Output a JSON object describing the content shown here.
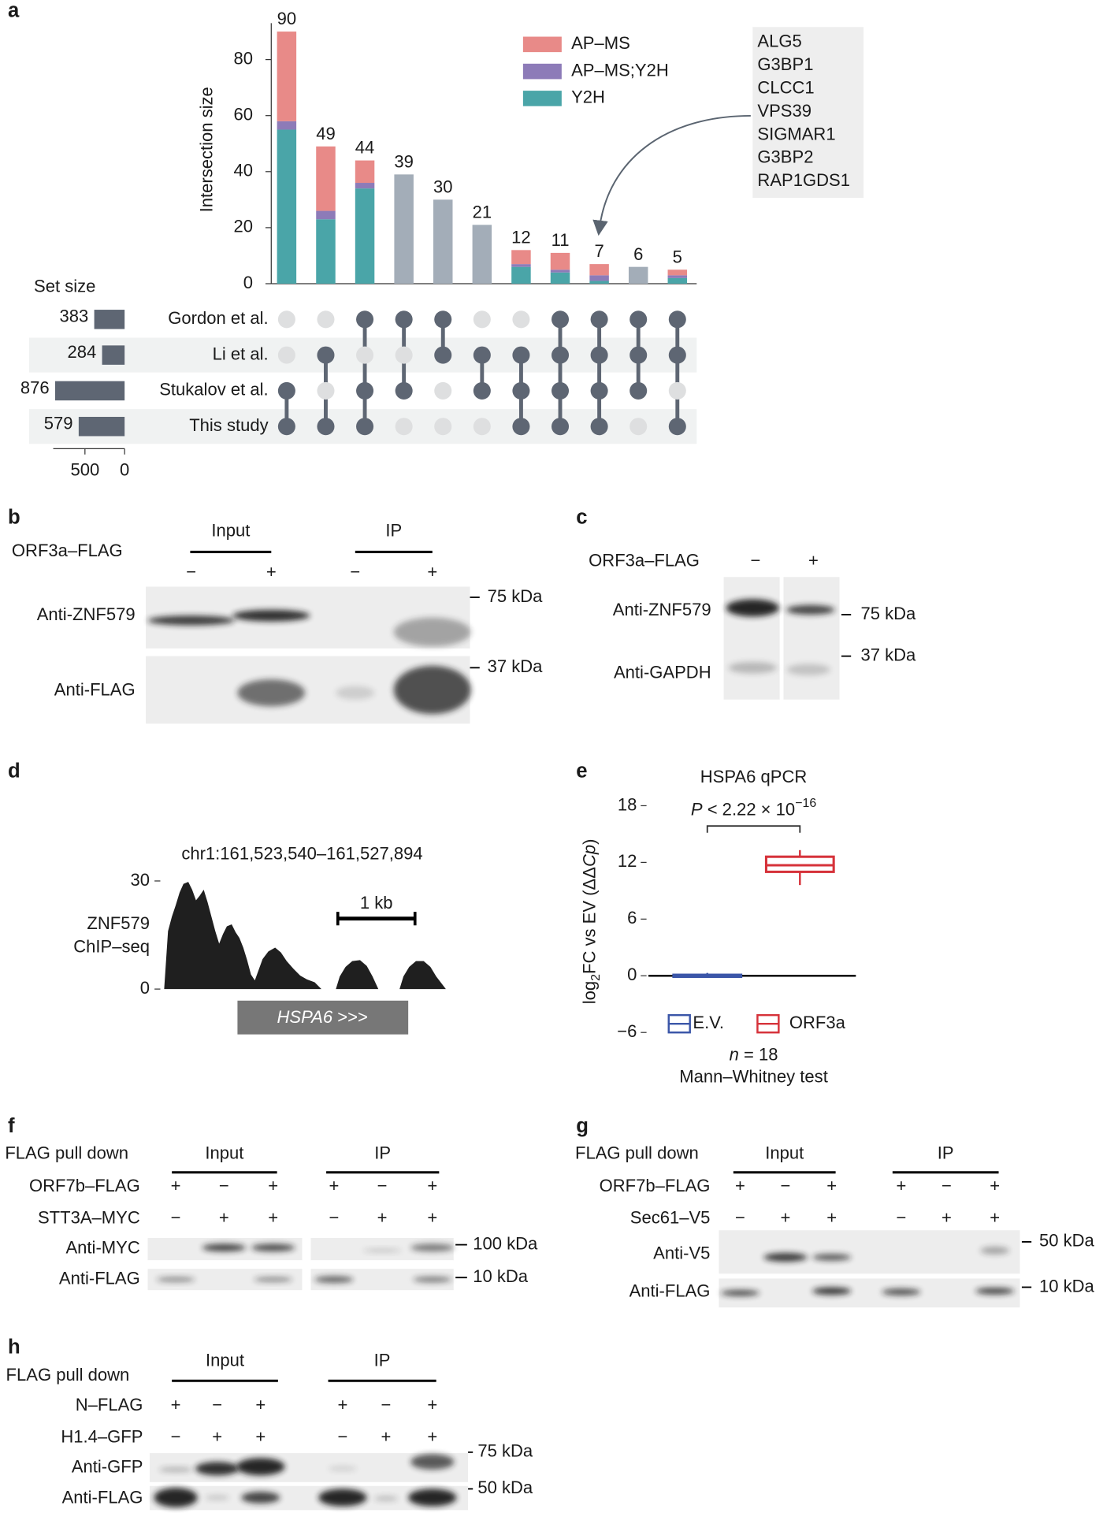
{
  "panel_labels": [
    "a",
    "b",
    "c",
    "d",
    "e",
    "f",
    "g",
    "h"
  ],
  "chart_data": [
    {
      "type": "upset",
      "y_label": "Intersection size",
      "series": [
        {
          "name": "AP–MS",
          "color": "#e88a88",
          "values": [
            32,
            23,
            8,
            null,
            null,
            null,
            5,
            6,
            4,
            null,
            2
          ]
        },
        {
          "name": "AP–MS;Y2H",
          "color": "#8d7bb8",
          "values": [
            3,
            3,
            2,
            null,
            null,
            null,
            1,
            1,
            2,
            null,
            1
          ]
        },
        {
          "name": "Y2H",
          "color": "#4aa5a8",
          "values": [
            55,
            23,
            34,
            null,
            null,
            null,
            6,
            4,
            1,
            null,
            2
          ]
        }
      ],
      "totals": [
        90,
        49,
        44,
        39,
        30,
        21,
        12,
        11,
        7,
        6,
        5
      ],
      "single_color": "#a3adb8",
      "ylim": [
        0,
        93
      ],
      "yticks": [
        0,
        20,
        40,
        60,
        80
      ],
      "sets": [
        "Gordon et al.",
        "Li et al.",
        "Stukalov et al.",
        "This study"
      ],
      "set_sizes": [
        383,
        284,
        876,
        579
      ],
      "set_size_label": "Set size",
      "set_size_xlim": [
        0,
        900
      ],
      "set_size_xticks": [
        500,
        0
      ],
      "membership": [
        [
          0,
          0,
          1,
          1
        ],
        [
          0,
          1,
          0,
          1
        ],
        [
          1,
          0,
          1,
          1
        ],
        [
          1,
          0,
          1,
          0
        ],
        [
          1,
          1,
          0,
          0
        ],
        [
          0,
          1,
          1,
          0
        ],
        [
          0,
          1,
          1,
          1
        ],
        [
          1,
          1,
          1,
          1
        ],
        [
          1,
          1,
          1,
          1
        ],
        [
          1,
          1,
          1,
          0
        ],
        [
          1,
          1,
          0,
          1
        ]
      ],
      "callout": [
        "ALG5",
        "G3BP1",
        "CLCC1",
        "VPS39",
        "SIGMAR1",
        "G3BP2",
        "RAP1GDS1"
      ]
    },
    {
      "type": "box",
      "title": "HSPA6 qPCR",
      "p_label": [
        "P",
        " < 2.22 × 10",
        "−16"
      ],
      "y_label": [
        "log",
        "2",
        "FC vs EV (ΔΔ",
        "Cp",
        ")"
      ],
      "ylim": [
        -6,
        18
      ],
      "yticks": [
        {
          "value": -6,
          "label": "−6"
        },
        0,
        6,
        12,
        18
      ],
      "series": [
        {
          "name": "E.V.",
          "color": "#3b56a8",
          "whislo": -0.2,
          "q1": -0.1,
          "med": 0,
          "q3": 0.1,
          "whishi": 0.3
        },
        {
          "name": "ORF3a",
          "color": "#d6323a",
          "whislo": 9.6,
          "q1": 11,
          "med": 11.7,
          "q3": 12.6,
          "whishi": 13.3
        }
      ],
      "n_label": [
        "n",
        " = 18"
      ],
      "test_label": "Mann–Whitney test"
    }
  ],
  "blots": {
    "b": {
      "groups": [
        "Input",
        "IP"
      ],
      "conditions": [
        {
          "name": "ORF3a–FLAG",
          "signs": [
            "−",
            "+",
            "−",
            "+"
          ]
        }
      ],
      "rows": [
        "Anti-ZNF579",
        "Anti-FLAG"
      ],
      "markers": [
        "75 kDa",
        "37 kDa"
      ]
    },
    "c": {
      "conditions": [
        {
          "name": "ORF3a–FLAG",
          "signs": [
            "−",
            "+"
          ]
        }
      ],
      "rows": [
        "Anti-ZNF579",
        "Anti-GAPDH"
      ],
      "markers": [
        "75 kDa",
        "37 kDa"
      ]
    },
    "f": {
      "title": "FLAG pull down",
      "groups": [
        "Input",
        "IP"
      ],
      "conditions": [
        {
          "name": "ORF7b–FLAG",
          "signs": [
            "+",
            "−",
            "+",
            "+",
            "−",
            "+"
          ]
        },
        {
          "name": "STT3A–MYC",
          "signs": [
            "−",
            "+",
            "+",
            "−",
            "+",
            "+"
          ]
        }
      ],
      "rows": [
        "Anti-MYC",
        "Anti-FLAG"
      ],
      "markers": [
        "100 kDa",
        "10 kDa"
      ]
    },
    "g": {
      "title": "FLAG pull down",
      "groups": [
        "Input",
        "IP"
      ],
      "conditions": [
        {
          "name": "ORF7b–FLAG",
          "signs": [
            "+",
            "−",
            "+",
            "+",
            "−",
            "+"
          ]
        },
        {
          "name": "Sec61–V5",
          "signs": [
            "−",
            "+",
            "+",
            "−",
            "+",
            "+"
          ]
        }
      ],
      "rows": [
        "Anti-V5",
        "Anti-FLAG"
      ],
      "markers": [
        "50 kDa",
        "10 kDa"
      ]
    },
    "h": {
      "title": "FLAG pull down",
      "groups": [
        "Input",
        "IP"
      ],
      "conditions": [
        {
          "name": "N–FLAG",
          "signs": [
            "+",
            "−",
            "+",
            "+",
            "−",
            "+"
          ]
        },
        {
          "name": "H1.4–GFP",
          "signs": [
            "−",
            "+",
            "+",
            "−",
            "+",
            "+"
          ]
        }
      ],
      "rows": [
        "Anti-GFP",
        "Anti-FLAG"
      ],
      "markers": [
        "75 kDa",
        "50 kDa"
      ]
    }
  },
  "chip_seq": {
    "coords": "chr1:161,523,540–161,527,894",
    "track_label": [
      "ZNF579",
      "ChIP–seq"
    ],
    "ylim": [
      0,
      30
    ],
    "yticks": [
      0,
      30
    ],
    "scale_label": "1 kb",
    "gene": [
      "HSPA6",
      " >>>"
    ]
  }
}
